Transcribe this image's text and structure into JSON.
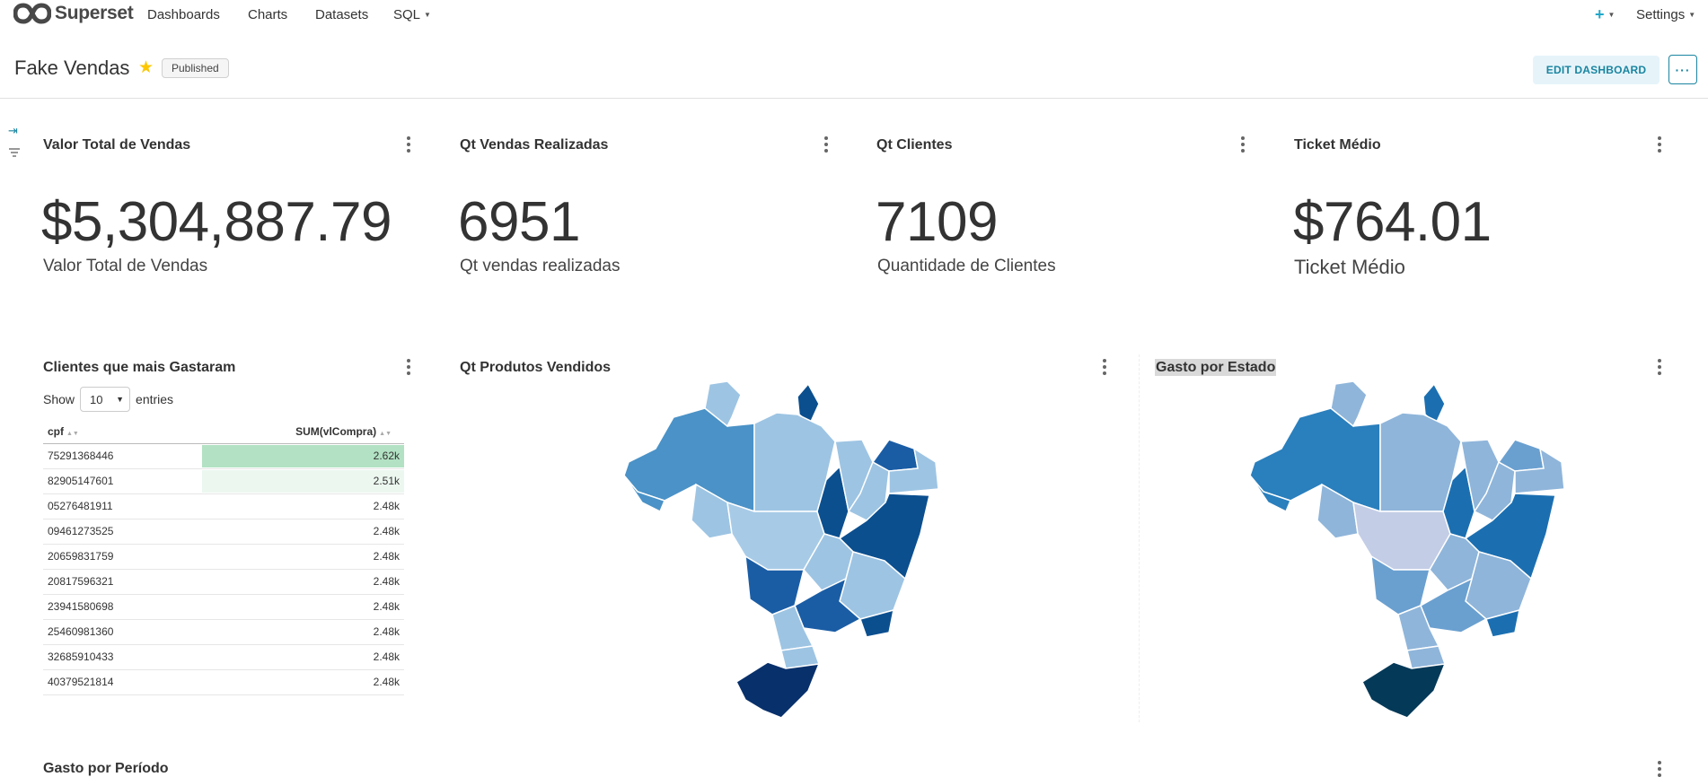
{
  "nav": {
    "brand": "Superset",
    "items": [
      "Dashboards",
      "Charts",
      "Datasets",
      "SQL"
    ],
    "settings": "Settings"
  },
  "dashboard": {
    "title": "Fake Vendas",
    "status": "Published",
    "edit_label": "EDIT DASHBOARD",
    "more_label": "···"
  },
  "kpis": [
    {
      "title": "Valor Total de Vendas",
      "value": "$5,304,887.79",
      "subtitle": "Valor Total de Vendas"
    },
    {
      "title": "Qt Vendas Realizadas",
      "value": "6951",
      "subtitle": "Qt vendas realizadas"
    },
    {
      "title": "Qt Clientes",
      "value": "7109",
      "subtitle": "Quantidade de Clientes"
    },
    {
      "title": "Ticket Médio",
      "value": "$764.01",
      "subtitle": "Ticket Médio"
    }
  ],
  "table_chart": {
    "title": "Clientes que mais Gastaram",
    "show_label": "Show",
    "page_size": "10",
    "entries_label": "entries",
    "columns": [
      "cpf",
      "SUM(vlCompra)"
    ],
    "rows": [
      {
        "cpf": "75291368446",
        "value": "2.62k",
        "bar": 1.0
      },
      {
        "cpf": "82905147601",
        "value": "2.51k",
        "bar": 1.0
      },
      {
        "cpf": "05276481911",
        "value": "2.48k",
        "bar": 0
      },
      {
        "cpf": "09461273525",
        "value": "2.48k",
        "bar": 0
      },
      {
        "cpf": "20659831759",
        "value": "2.48k",
        "bar": 0
      },
      {
        "cpf": "20817596321",
        "value": "2.48k",
        "bar": 0
      },
      {
        "cpf": "23941580698",
        "value": "2.48k",
        "bar": 0
      },
      {
        "cpf": "25460981360",
        "value": "2.48k",
        "bar": 0
      },
      {
        "cpf": "32685910433",
        "value": "2.48k",
        "bar": 0
      },
      {
        "cpf": "40379521814",
        "value": "2.48k",
        "bar": 0
      }
    ],
    "bar_colors": [
      "#b2e2c3",
      "#ecf7f0"
    ]
  },
  "maps": [
    {
      "title": "Qt Produtos Vendidos"
    },
    {
      "title": "Gasto por Estado"
    }
  ],
  "bottom_chart": {
    "title": "Gasto por Período"
  },
  "colors": {
    "accent": "#20a7c9",
    "map_light": "#c6dbef",
    "map_mid": "#4a92c7",
    "map_dark": "#08306b"
  }
}
